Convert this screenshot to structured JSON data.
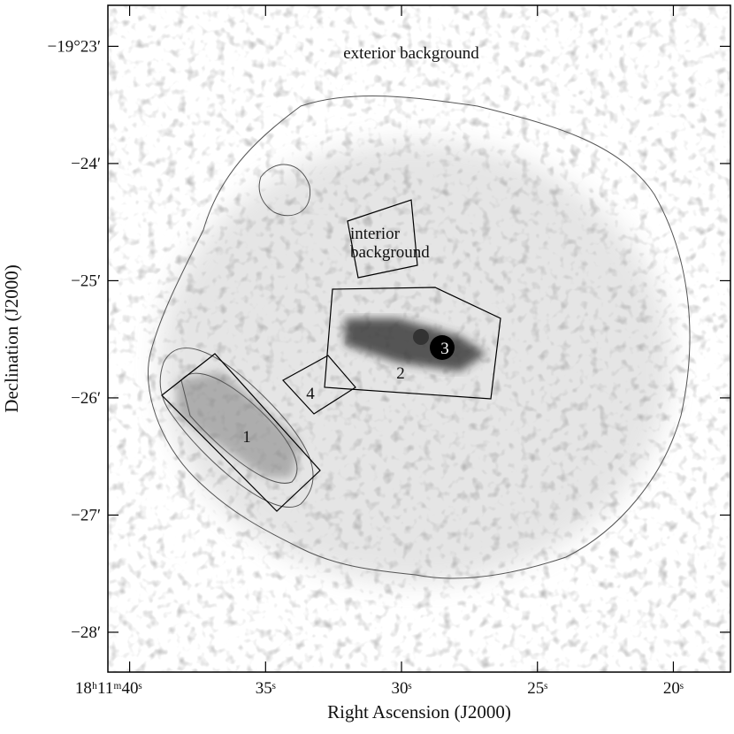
{
  "chart_data": {
    "type": "image",
    "x_label": "Right Ascension (J2000)",
    "y_label": "Declination (J2000)",
    "xlim": [
      40.8,
      17.9
    ],
    "ylim": [
      -28.34,
      -22.65
    ],
    "xticks": [
      {
        "value": 40,
        "label": "18ʰ11ᵐ40ˢ"
      },
      {
        "value": 35,
        "label": "35ˢ"
      },
      {
        "value": 30,
        "label": "30ˢ"
      },
      {
        "value": 25,
        "label": "25ˢ"
      },
      {
        "value": 20,
        "label": "20ˢ"
      }
    ],
    "yticks": [
      {
        "value": -23,
        "label": "−19°23′"
      },
      {
        "value": -24,
        "label": "−24′"
      },
      {
        "value": -25,
        "label": "−25′"
      },
      {
        "value": -26,
        "label": "−26′"
      },
      {
        "value": -27,
        "label": "−27′"
      },
      {
        "value": -28,
        "label": "−28′"
      }
    ],
    "annotations": [
      "exterior background",
      "interior",
      "background",
      "1",
      "2",
      "3",
      "4"
    ]
  }
}
